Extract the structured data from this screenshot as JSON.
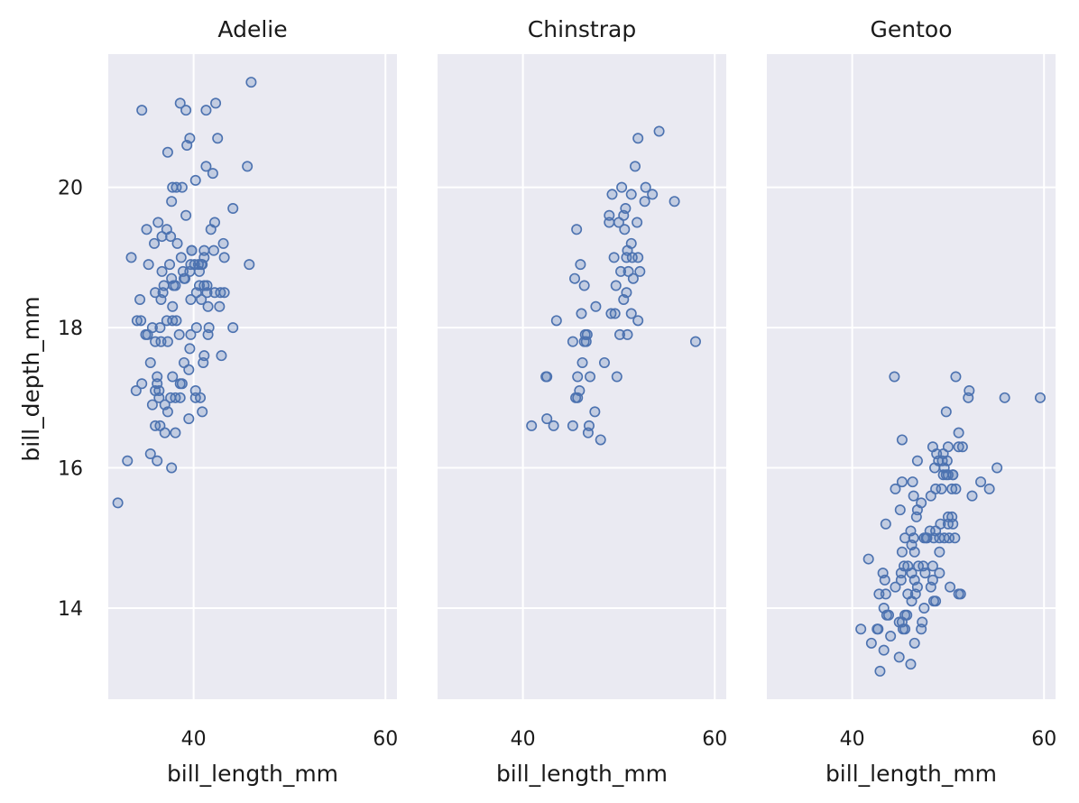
{
  "chart_data": {
    "type": "scatter",
    "facet_by": "species",
    "xlabel": "bill_length_mm",
    "ylabel": "bill_depth_mm",
    "xlim": [
      31.1,
      61.2
    ],
    "ylim": [
      12.7,
      21.9
    ],
    "xticks": [
      40,
      60
    ],
    "yticks": [
      14,
      16,
      18,
      20
    ],
    "grid": true,
    "color": "#4c72b0",
    "panel_background": "#eaeaf2",
    "panels": [
      {
        "title": "Adelie",
        "points": [
          [
            32.1,
            15.5
          ],
          [
            33.1,
            16.1
          ],
          [
            33.5,
            19.0
          ],
          [
            34.0,
            17.1
          ],
          [
            34.1,
            18.1
          ],
          [
            34.4,
            18.4
          ],
          [
            34.5,
            18.1
          ],
          [
            34.6,
            21.1
          ],
          [
            34.6,
            17.2
          ],
          [
            35.0,
            17.9
          ],
          [
            35.1,
            19.4
          ],
          [
            35.2,
            17.9
          ],
          [
            35.3,
            18.9
          ],
          [
            35.5,
            16.2
          ],
          [
            35.5,
            17.5
          ],
          [
            35.7,
            16.9
          ],
          [
            35.7,
            18.0
          ],
          [
            35.9,
            19.2
          ],
          [
            36.0,
            18.5
          ],
          [
            36.0,
            17.8
          ],
          [
            36.0,
            17.1
          ],
          [
            36.0,
            16.6
          ],
          [
            36.2,
            16.1
          ],
          [
            36.2,
            17.3
          ],
          [
            36.2,
            17.2
          ],
          [
            36.3,
            19.5
          ],
          [
            36.4,
            17.0
          ],
          [
            36.4,
            17.1
          ],
          [
            36.5,
            18.0
          ],
          [
            36.5,
            16.6
          ],
          [
            36.6,
            17.8
          ],
          [
            36.6,
            18.4
          ],
          [
            36.7,
            18.8
          ],
          [
            36.7,
            19.3
          ],
          [
            36.8,
            18.5
          ],
          [
            36.9,
            18.6
          ],
          [
            37.0,
            16.9
          ],
          [
            37.0,
            16.5
          ],
          [
            37.2,
            18.1
          ],
          [
            37.2,
            19.4
          ],
          [
            37.3,
            20.5
          ],
          [
            37.3,
            17.8
          ],
          [
            37.3,
            16.8
          ],
          [
            37.5,
            18.9
          ],
          [
            37.6,
            19.3
          ],
          [
            37.6,
            17.0
          ],
          [
            37.7,
            18.7
          ],
          [
            37.7,
            19.8
          ],
          [
            37.7,
            16.0
          ],
          [
            37.8,
            18.3
          ],
          [
            37.8,
            17.3
          ],
          [
            37.8,
            18.1
          ],
          [
            37.8,
            20.0
          ],
          [
            37.9,
            18.6
          ],
          [
            38.1,
            18.6
          ],
          [
            38.1,
            16.5
          ],
          [
            38.1,
            17.0
          ],
          [
            38.2,
            18.1
          ],
          [
            38.2,
            20.0
          ],
          [
            38.3,
            19.2
          ],
          [
            38.5,
            17.9
          ],
          [
            38.6,
            21.2
          ],
          [
            38.6,
            17.0
          ],
          [
            38.6,
            17.2
          ],
          [
            38.7,
            19.0
          ],
          [
            38.8,
            17.2
          ],
          [
            38.8,
            20.0
          ],
          [
            38.9,
            18.8
          ],
          [
            39.0,
            17.5
          ],
          [
            39.0,
            18.7
          ],
          [
            39.1,
            18.7
          ],
          [
            39.2,
            19.6
          ],
          [
            39.2,
            21.1
          ],
          [
            39.3,
            20.6
          ],
          [
            39.5,
            17.4
          ],
          [
            39.5,
            16.7
          ],
          [
            39.6,
            18.8
          ],
          [
            39.6,
            20.7
          ],
          [
            39.6,
            17.7
          ],
          [
            39.7,
            18.4
          ],
          [
            39.7,
            17.9
          ],
          [
            39.7,
            18.9
          ],
          [
            39.8,
            19.1
          ],
          [
            39.8,
            19.1
          ],
          [
            40.1,
            18.9
          ],
          [
            40.2,
            20.1
          ],
          [
            40.2,
            17.1
          ],
          [
            40.2,
            17.0
          ],
          [
            40.3,
            18.5
          ],
          [
            40.3,
            18.0
          ],
          [
            40.5,
            18.9
          ],
          [
            40.6,
            18.6
          ],
          [
            40.6,
            18.8
          ],
          [
            40.7,
            17.0
          ],
          [
            40.8,
            18.4
          ],
          [
            40.8,
            18.9
          ],
          [
            40.9,
            16.8
          ],
          [
            40.9,
            18.9
          ],
          [
            41.0,
            17.5
          ],
          [
            41.1,
            19.0
          ],
          [
            41.1,
            17.6
          ],
          [
            41.1,
            18.6
          ],
          [
            41.1,
            19.1
          ],
          [
            41.3,
            20.3
          ],
          [
            41.3,
            21.1
          ],
          [
            41.4,
            18.6
          ],
          [
            41.4,
            18.5
          ],
          [
            41.5,
            18.3
          ],
          [
            41.5,
            17.9
          ],
          [
            41.6,
            18.0
          ],
          [
            41.8,
            19.4
          ],
          [
            42.0,
            20.2
          ],
          [
            42.1,
            19.1
          ],
          [
            42.2,
            19.5
          ],
          [
            42.2,
            18.5
          ],
          [
            42.3,
            21.2
          ],
          [
            42.5,
            20.7
          ],
          [
            42.7,
            18.3
          ],
          [
            42.8,
            18.5
          ],
          [
            42.9,
            17.6
          ],
          [
            43.1,
            19.2
          ],
          [
            43.2,
            18.5
          ],
          [
            43.2,
            19.0
          ],
          [
            44.1,
            18.0
          ],
          [
            44.1,
            19.7
          ],
          [
            45.6,
            20.3
          ],
          [
            45.8,
            18.9
          ],
          [
            46.0,
            21.5
          ]
        ]
      },
      {
        "title": "Chinstrap",
        "points": [
          [
            40.9,
            16.6
          ],
          [
            42.4,
            17.3
          ],
          [
            42.5,
            16.7
          ],
          [
            42.5,
            17.3
          ],
          [
            43.2,
            16.6
          ],
          [
            43.5,
            18.1
          ],
          [
            45.2,
            17.8
          ],
          [
            45.2,
            16.6
          ],
          [
            45.4,
            18.7
          ],
          [
            45.5,
            17.0
          ],
          [
            45.6,
            19.4
          ],
          [
            45.7,
            17.0
          ],
          [
            45.7,
            17.3
          ],
          [
            45.9,
            17.1
          ],
          [
            46.0,
            18.9
          ],
          [
            46.1,
            18.2
          ],
          [
            46.2,
            17.5
          ],
          [
            46.4,
            18.6
          ],
          [
            46.4,
            17.8
          ],
          [
            46.5,
            17.9
          ],
          [
            46.6,
            17.8
          ],
          [
            46.7,
            17.9
          ],
          [
            46.8,
            16.5
          ],
          [
            46.9,
            16.6
          ],
          [
            47.0,
            17.3
          ],
          [
            47.5,
            16.8
          ],
          [
            47.6,
            18.3
          ],
          [
            48.1,
            16.4
          ],
          [
            48.5,
            17.5
          ],
          [
            49.0,
            19.6
          ],
          [
            49.0,
            19.5
          ],
          [
            49.2,
            18.2
          ],
          [
            49.3,
            19.9
          ],
          [
            49.5,
            19.0
          ],
          [
            49.6,
            18.2
          ],
          [
            49.7,
            18.6
          ],
          [
            49.8,
            17.3
          ],
          [
            50.0,
            19.5
          ],
          [
            50.1,
            17.9
          ],
          [
            50.2,
            18.8
          ],
          [
            50.3,
            20.0
          ],
          [
            50.5,
            18.4
          ],
          [
            50.5,
            19.6
          ],
          [
            50.6,
            19.4
          ],
          [
            50.7,
            19.7
          ],
          [
            50.8,
            18.5
          ],
          [
            50.8,
            19.0
          ],
          [
            50.9,
            17.9
          ],
          [
            50.9,
            19.1
          ],
          [
            51.0,
            18.8
          ],
          [
            51.3,
            19.2
          ],
          [
            51.3,
            18.2
          ],
          [
            51.3,
            19.9
          ],
          [
            51.4,
            19.0
          ],
          [
            51.5,
            18.7
          ],
          [
            51.7,
            20.3
          ],
          [
            51.9,
            19.5
          ],
          [
            52.0,
            18.1
          ],
          [
            52.0,
            19.0
          ],
          [
            52.0,
            20.7
          ],
          [
            52.2,
            18.8
          ],
          [
            52.7,
            19.8
          ],
          [
            52.8,
            20.0
          ],
          [
            53.5,
            19.9
          ],
          [
            54.2,
            20.8
          ],
          [
            55.8,
            19.8
          ],
          [
            58.0,
            17.8
          ]
        ]
      },
      {
        "title": "Gentoo",
        "points": [
          [
            40.9,
            13.7
          ],
          [
            41.7,
            14.7
          ],
          [
            42.0,
            13.5
          ],
          [
            42.6,
            13.7
          ],
          [
            42.7,
            13.7
          ],
          [
            42.8,
            14.2
          ],
          [
            42.9,
            13.1
          ],
          [
            43.2,
            14.5
          ],
          [
            43.3,
            13.4
          ],
          [
            43.3,
            14.0
          ],
          [
            43.4,
            14.4
          ],
          [
            43.5,
            14.2
          ],
          [
            43.5,
            15.2
          ],
          [
            43.6,
            13.9
          ],
          [
            43.8,
            13.9
          ],
          [
            44.0,
            13.6
          ],
          [
            44.4,
            17.3
          ],
          [
            44.5,
            14.3
          ],
          [
            44.5,
            15.7
          ],
          [
            44.9,
            13.8
          ],
          [
            44.9,
            13.3
          ],
          [
            45.0,
            15.4
          ],
          [
            45.1,
            14.5
          ],
          [
            45.1,
            14.4
          ],
          [
            45.2,
            13.8
          ],
          [
            45.2,
            14.8
          ],
          [
            45.2,
            15.8
          ],
          [
            45.2,
            16.4
          ],
          [
            45.3,
            13.7
          ],
          [
            45.4,
            14.6
          ],
          [
            45.5,
            13.7
          ],
          [
            45.5,
            13.9
          ],
          [
            45.5,
            15.0
          ],
          [
            45.7,
            13.9
          ],
          [
            45.8,
            14.2
          ],
          [
            45.8,
            14.6
          ],
          [
            46.1,
            13.2
          ],
          [
            46.1,
            15.1
          ],
          [
            46.2,
            14.1
          ],
          [
            46.2,
            14.5
          ],
          [
            46.2,
            14.9
          ],
          [
            46.3,
            15.8
          ],
          [
            46.4,
            15.0
          ],
          [
            46.4,
            15.6
          ],
          [
            46.5,
            13.5
          ],
          [
            46.5,
            14.4
          ],
          [
            46.5,
            14.8
          ],
          [
            46.6,
            14.2
          ],
          [
            46.7,
            15.3
          ],
          [
            46.8,
            14.3
          ],
          [
            46.8,
            15.4
          ],
          [
            46.8,
            16.1
          ],
          [
            46.9,
            14.6
          ],
          [
            47.2,
            13.7
          ],
          [
            47.2,
            15.5
          ],
          [
            47.3,
            13.8
          ],
          [
            47.4,
            14.6
          ],
          [
            47.5,
            14.0
          ],
          [
            47.5,
            15.0
          ],
          [
            47.6,
            14.5
          ],
          [
            47.7,
            15.0
          ],
          [
            47.8,
            15.0
          ],
          [
            48.1,
            15.1
          ],
          [
            48.2,
            14.3
          ],
          [
            48.2,
            15.6
          ],
          [
            48.4,
            14.4
          ],
          [
            48.4,
            14.6
          ],
          [
            48.4,
            16.3
          ],
          [
            48.5,
            14.1
          ],
          [
            48.5,
            15.0
          ],
          [
            48.6,
            16.0
          ],
          [
            48.7,
            14.1
          ],
          [
            48.7,
            15.1
          ],
          [
            48.7,
            15.7
          ],
          [
            48.8,
            16.2
          ],
          [
            49.0,
            16.1
          ],
          [
            49.1,
            14.5
          ],
          [
            49.1,
            14.8
          ],
          [
            49.1,
            15.0
          ],
          [
            49.2,
            15.2
          ],
          [
            49.3,
            15.7
          ],
          [
            49.4,
            16.1
          ],
          [
            49.5,
            15.9
          ],
          [
            49.5,
            16.2
          ],
          [
            49.6,
            15.0
          ],
          [
            49.6,
            16.0
          ],
          [
            49.8,
            15.9
          ],
          [
            49.8,
            16.8
          ],
          [
            49.9,
            16.1
          ],
          [
            50.0,
            15.2
          ],
          [
            50.0,
            15.3
          ],
          [
            50.0,
            15.9
          ],
          [
            50.0,
            16.3
          ],
          [
            50.1,
            15.0
          ],
          [
            50.2,
            14.3
          ],
          [
            50.4,
            15.3
          ],
          [
            50.4,
            15.7
          ],
          [
            50.5,
            15.2
          ],
          [
            50.5,
            15.9
          ],
          [
            50.5,
            15.9
          ],
          [
            50.7,
            15.0
          ],
          [
            50.8,
            15.7
          ],
          [
            50.8,
            17.3
          ],
          [
            51.1,
            14.2
          ],
          [
            51.1,
            16.3
          ],
          [
            51.1,
            16.5
          ],
          [
            51.3,
            14.2
          ],
          [
            51.5,
            16.3
          ],
          [
            52.1,
            17.0
          ],
          [
            52.2,
            17.1
          ],
          [
            52.5,
            15.6
          ],
          [
            53.4,
            15.8
          ],
          [
            54.3,
            15.7
          ],
          [
            55.1,
            16.0
          ],
          [
            55.9,
            17.0
          ],
          [
            59.6,
            17.0
          ]
        ]
      }
    ]
  }
}
